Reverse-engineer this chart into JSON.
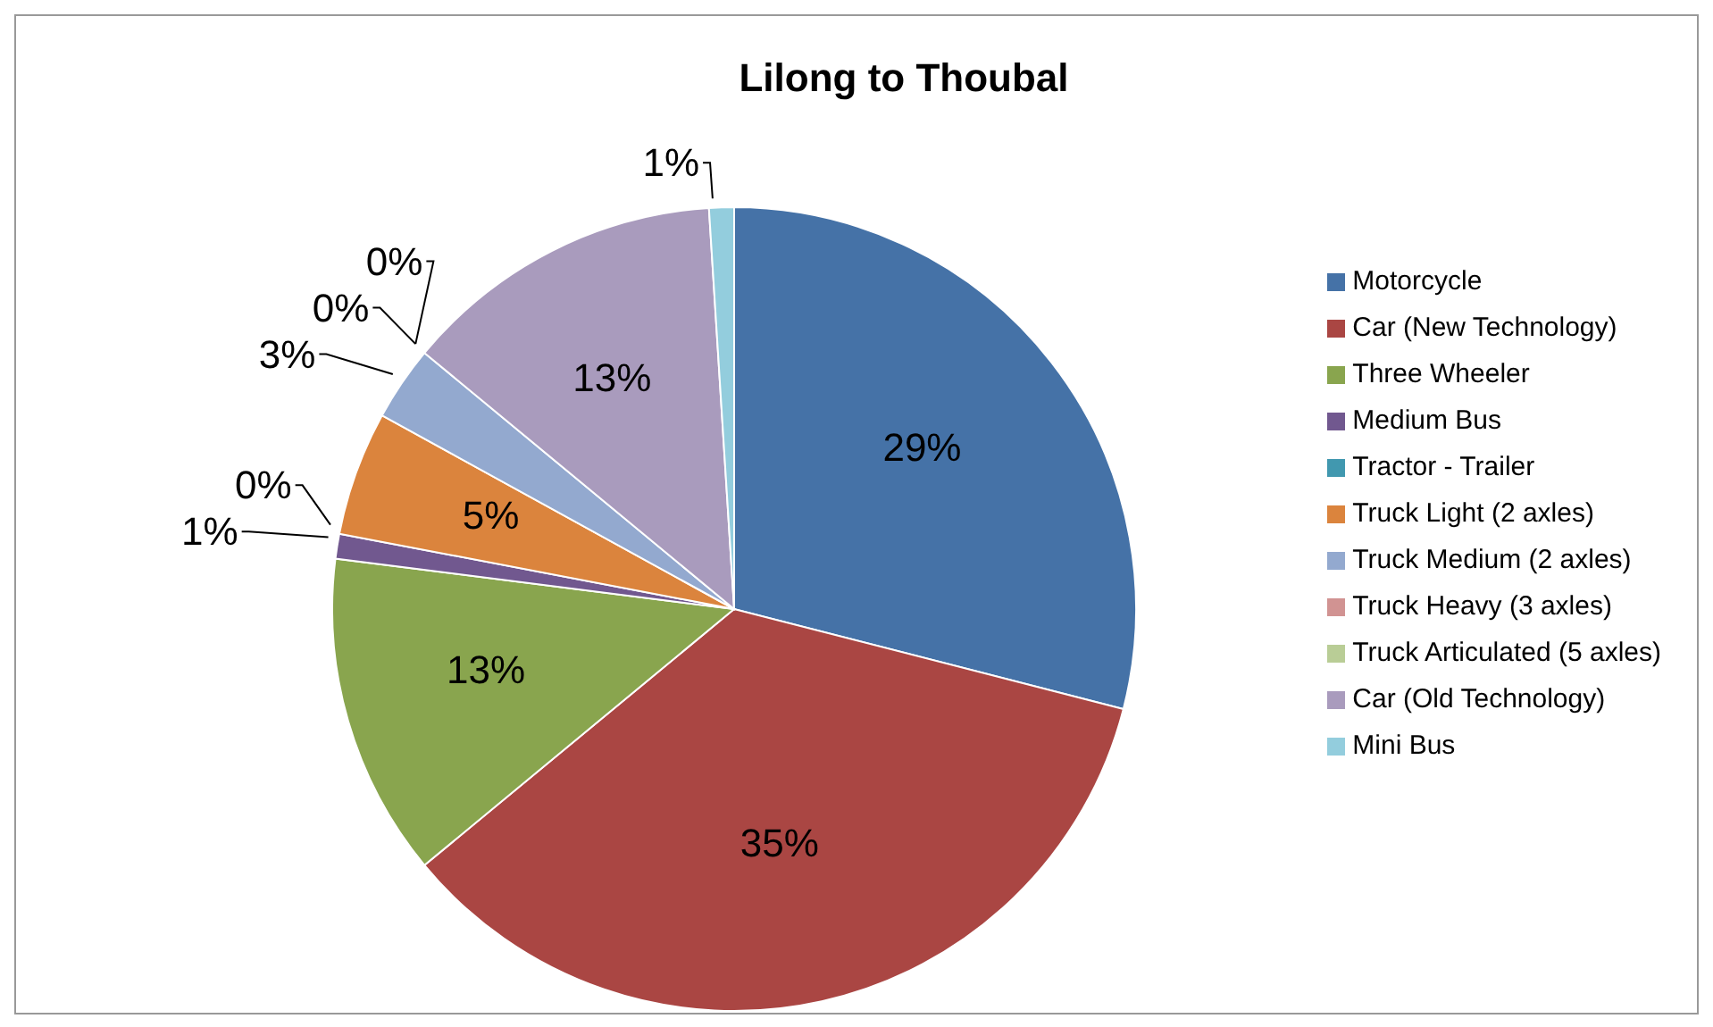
{
  "chart_data": {
    "type": "pie",
    "title": "Lilong to Thoubal",
    "categories": [
      "Motorcycle",
      "Car (New Technology)",
      "Three Wheeler",
      "Medium Bus",
      "Tractor - Trailer",
      "Truck Light (2 axles)",
      "Truck Medium (2 axles)",
      "Truck Heavy (3 axles)",
      "Truck Articulated (5 axles)",
      "Car (Old Technology)",
      "Mini Bus"
    ],
    "values": [
      29,
      35,
      13,
      1,
      0,
      5,
      3,
      0,
      0,
      13,
      1
    ],
    "colors": [
      "#4572a7",
      "#aa4643",
      "#89a54e",
      "#71588f",
      "#4198af",
      "#db843d",
      "#93a9cf",
      "#d19392",
      "#b9cd96",
      "#a99bbd",
      "#93cddd"
    ],
    "value_labels": [
      "29%",
      "35%",
      "13%",
      "1%",
      "0%",
      "5%",
      "3%",
      "0%",
      "0%",
      "13%",
      "1%"
    ],
    "legend": "right"
  }
}
